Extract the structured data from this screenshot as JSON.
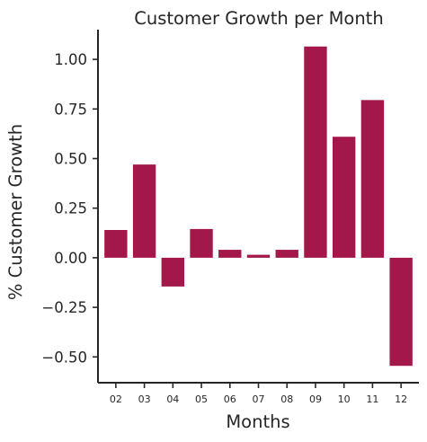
{
  "chart_data": {
    "type": "bar",
    "title": "Customer Growth per Month",
    "xlabel": "Months",
    "ylabel": "% Customer Growth",
    "categories": [
      "02",
      "03",
      "04",
      "05",
      "06",
      "07",
      "08",
      "09",
      "10",
      "11",
      "12"
    ],
    "values": [
      0.14,
      0.47,
      -0.145,
      0.145,
      0.04,
      0.015,
      0.04,
      1.065,
      0.61,
      0.795,
      -0.545
    ],
    "ylim": [
      -0.63,
      1.15
    ],
    "yticks": [
      -0.5,
      -0.25,
      0.0,
      0.25,
      0.5,
      0.75,
      1.0
    ],
    "ytick_labels": [
      "−0.50",
      "−0.25",
      "0.00",
      "0.25",
      "0.50",
      "0.75",
      "1.00"
    ],
    "bar_color": "#a3174a",
    "grid": false,
    "legend": "none"
  }
}
